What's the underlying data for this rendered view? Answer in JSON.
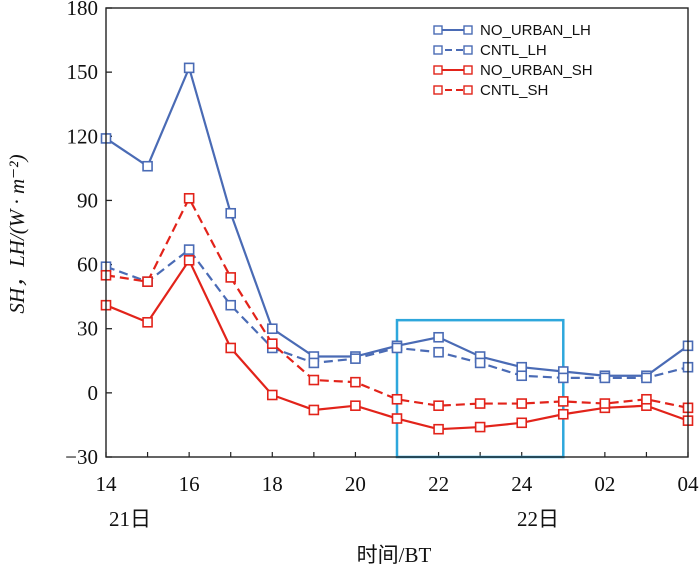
{
  "chart_data": {
    "type": "line",
    "xlabel": "时间/BT",
    "ylabel": "SH，LH/(W · m⁻²)",
    "ylim": [
      -30,
      180
    ],
    "y_ticks": [
      "180",
      "150",
      "120",
      "90",
      "60",
      "30",
      "0",
      "−30"
    ],
    "x_tick_labels": [
      "14",
      "16",
      "18",
      "20",
      "22",
      "24",
      "02",
      "04"
    ],
    "date_labels": [
      "21日",
      "22日"
    ],
    "x_hours": [
      14,
      15,
      16,
      17,
      18,
      19,
      20,
      21,
      22,
      23,
      24,
      25,
      26,
      27,
      28
    ],
    "highlight_box": {
      "x_range": [
        21,
        25
      ],
      "y_range": [
        -30,
        34
      ]
    },
    "series": [
      {
        "name": "NO_URBAN_LH",
        "color": "#4a6bb5",
        "dashed": false,
        "values": [
          119,
          106,
          152,
          84,
          30,
          17,
          17,
          22,
          26,
          17,
          12,
          10,
          8,
          8,
          22
        ]
      },
      {
        "name": "CNTL_LH",
        "color": "#4a6bb5",
        "dashed": true,
        "values": [
          59,
          52,
          67,
          41,
          21,
          14,
          16,
          21,
          19,
          14,
          8,
          7,
          7,
          7,
          12
        ]
      },
      {
        "name": "NO_URBAN_SH",
        "color": "#e2231a",
        "dashed": false,
        "values": [
          41,
          33,
          62,
          21,
          -1,
          -8,
          -6,
          -12,
          -17,
          -16,
          -14,
          -10,
          -7,
          -6,
          -13
        ]
      },
      {
        "name": "CNTL_SH",
        "color": "#e2231a",
        "dashed": true,
        "values": [
          55,
          52,
          91,
          54,
          23,
          6,
          5,
          -3,
          -6,
          -5,
          -5,
          -4,
          -5,
          -3,
          -7
        ]
      }
    ]
  }
}
